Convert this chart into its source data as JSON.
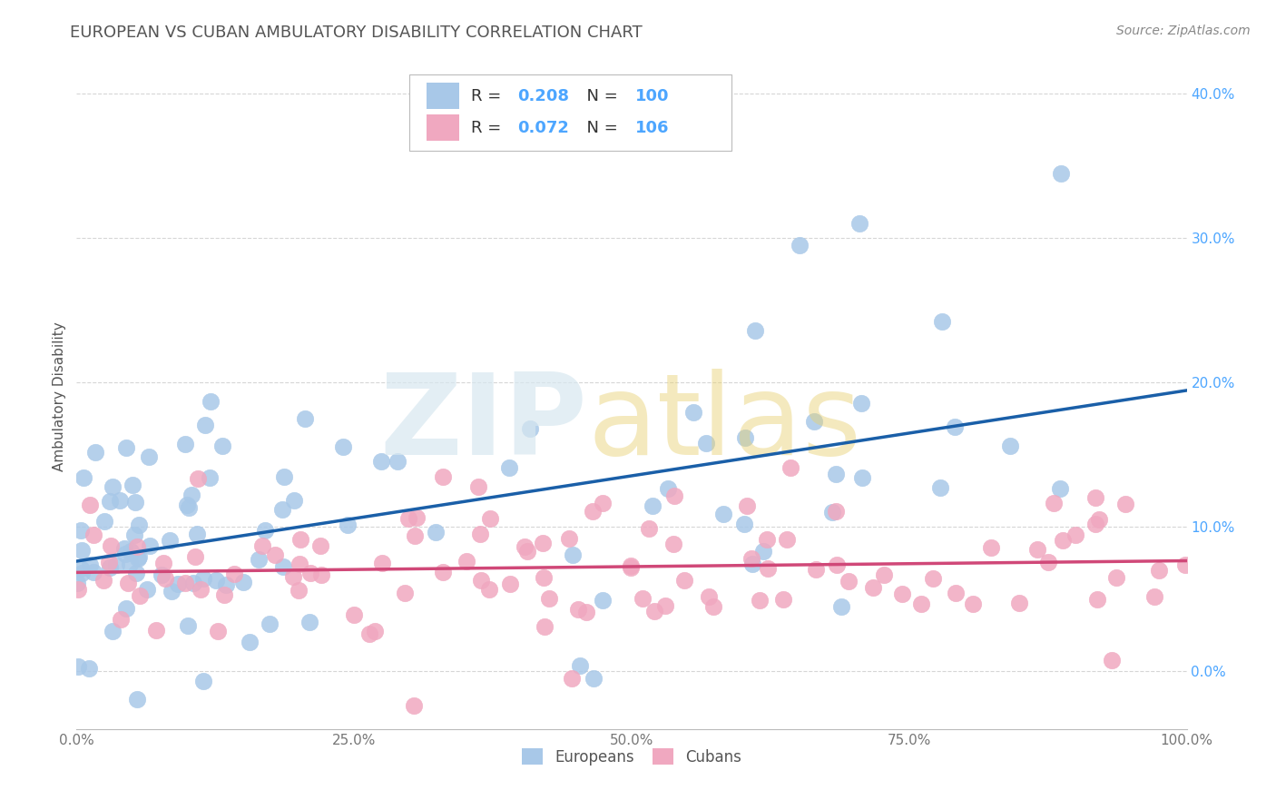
{
  "title": "EUROPEAN VS CUBAN AMBULATORY DISABILITY CORRELATION CHART",
  "source": "Source: ZipAtlas.com",
  "ylabel": "Ambulatory Disability",
  "xlim": [
    0.0,
    1.0
  ],
  "ylim": [
    -0.04,
    0.42
  ],
  "ytick_vals": [
    0.0,
    0.1,
    0.2,
    0.3,
    0.4
  ],
  "xtick_vals": [
    0.0,
    0.25,
    0.5,
    0.75,
    1.0
  ],
  "european_scatter_color": "#a8c8e8",
  "cuban_scatter_color": "#f0a8c0",
  "european_line_color": "#1a5fa8",
  "cuban_line_color": "#d04878",
  "legend_value_color": "#4da6ff",
  "R_european": 0.208,
  "N_european": 100,
  "R_cuban": 0.072,
  "N_cuban": 106,
  "background": "#ffffff",
  "grid_color": "#cccccc",
  "title_color": "#555555",
  "tick_color_y": "#4da6ff",
  "tick_color_x": "#777777",
  "ylabel_color": "#555555"
}
